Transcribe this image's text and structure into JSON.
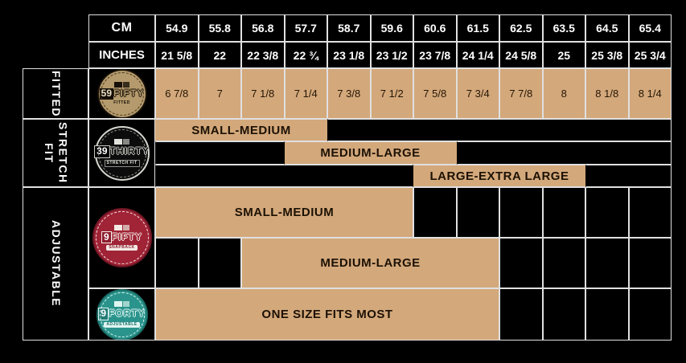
{
  "colors": {
    "background": "#000000",
    "tan": "#d3a87b",
    "grid_line": "#e0e0e0",
    "header_text": "#ffffff",
    "cell_text": "#241505",
    "badge_59fifty_gold": "#b49a6c",
    "badge_39thirty_silver": "#d6d6d0",
    "badge_9fifty_red": "#a02336",
    "badge_9forty_teal": "#2a948c"
  },
  "header": {
    "cm_label": "CM",
    "inches_label": "INCHES",
    "cm_values": [
      "54.9",
      "55.8",
      "56.8",
      "57.7",
      "58.7",
      "59.6",
      "60.6",
      "61.5",
      "62.5",
      "63.5",
      "64.5",
      "65.4"
    ],
    "inches_values": [
      "21 5/8",
      "22",
      "22 3/8",
      "22 ¾",
      "23 1/8",
      "23 1/2",
      "23 7/8",
      "24 1/4",
      "24 5/8",
      "25",
      "25 3/8",
      "25 3/4"
    ]
  },
  "fitted": {
    "label": "FITTED",
    "logo": {
      "number": "59",
      "word": "FIFTY",
      "sub": "FITTED"
    },
    "sizes": [
      "6 7/8",
      "7",
      "7 1/8",
      "7 1/4",
      "7 3/8",
      "7 1/2",
      "7 5/8",
      "7 3/4",
      "7 7/8",
      "8",
      "8 1/8",
      "8 1/4"
    ]
  },
  "stretch": {
    "label": "STRETCH FIT",
    "logo": {
      "number": "39",
      "word": "THIRTY",
      "sub": "STRETCH FIT"
    },
    "bands": [
      {
        "label": "SMALL-MEDIUM"
      },
      {
        "label": "MEDIUM-LARGE"
      },
      {
        "label": "LARGE-EXTRA LARGE"
      }
    ]
  },
  "adjustable": {
    "label": "ADJUSTABLE",
    "snapback_logo": {
      "number": "9",
      "word": "FIFTY",
      "sub": "SNAPBACK"
    },
    "forty_logo": {
      "number": "9",
      "word": "FORTY",
      "sub": "ADJUSTABLE"
    },
    "bands": [
      {
        "label": "SMALL-MEDIUM"
      },
      {
        "label": "MEDIUM-LARGE"
      },
      {
        "label": "ONE SIZE FITS MOST"
      }
    ]
  },
  "chart_data": {
    "type": "table",
    "columns": {
      "cm": [
        54.9,
        55.8,
        56.8,
        57.7,
        58.7,
        59.6,
        60.6,
        61.5,
        62.5,
        63.5,
        64.5,
        65.4
      ],
      "inches": [
        "21 5/8",
        "22",
        "22 3/8",
        "22 ¾",
        "23 1/8",
        "23 1/2",
        "23 7/8",
        "24 1/4",
        "24 5/8",
        "25",
        "25 3/8",
        "25 3/4"
      ]
    },
    "rows": [
      {
        "section": "FITTED",
        "product": "59FIFTY",
        "cell_values": [
          "6 7/8",
          "7",
          "7 1/8",
          "7 1/4",
          "7 3/8",
          "7 1/2",
          "7 5/8",
          "7 3/4",
          "7 7/8",
          "8",
          "8 1/8",
          "8 1/4"
        ]
      },
      {
        "section": "STRETCH FIT",
        "product": "39THIRTY",
        "bands": [
          {
            "label": "SMALL-MEDIUM",
            "cm_min": 54.9,
            "cm_max": 57.7
          },
          {
            "label": "MEDIUM-LARGE",
            "cm_min": 57.7,
            "cm_max": 60.6
          },
          {
            "label": "LARGE-EXTRA LARGE",
            "cm_min": 60.6,
            "cm_max": 63.5
          }
        ]
      },
      {
        "section": "ADJUSTABLE",
        "product": "9FIFTY SNAPBACK",
        "bands": [
          {
            "label": "SMALL-MEDIUM",
            "cm_min": 54.9,
            "cm_max": 59.6
          },
          {
            "label": "MEDIUM-LARGE",
            "cm_min": 56.8,
            "cm_max": 61.5
          }
        ]
      },
      {
        "section": "ADJUSTABLE",
        "product": "9FORTY",
        "bands": [
          {
            "label": "ONE SIZE FITS MOST",
            "cm_min": 54.9,
            "cm_max": 61.5
          }
        ]
      }
    ]
  }
}
